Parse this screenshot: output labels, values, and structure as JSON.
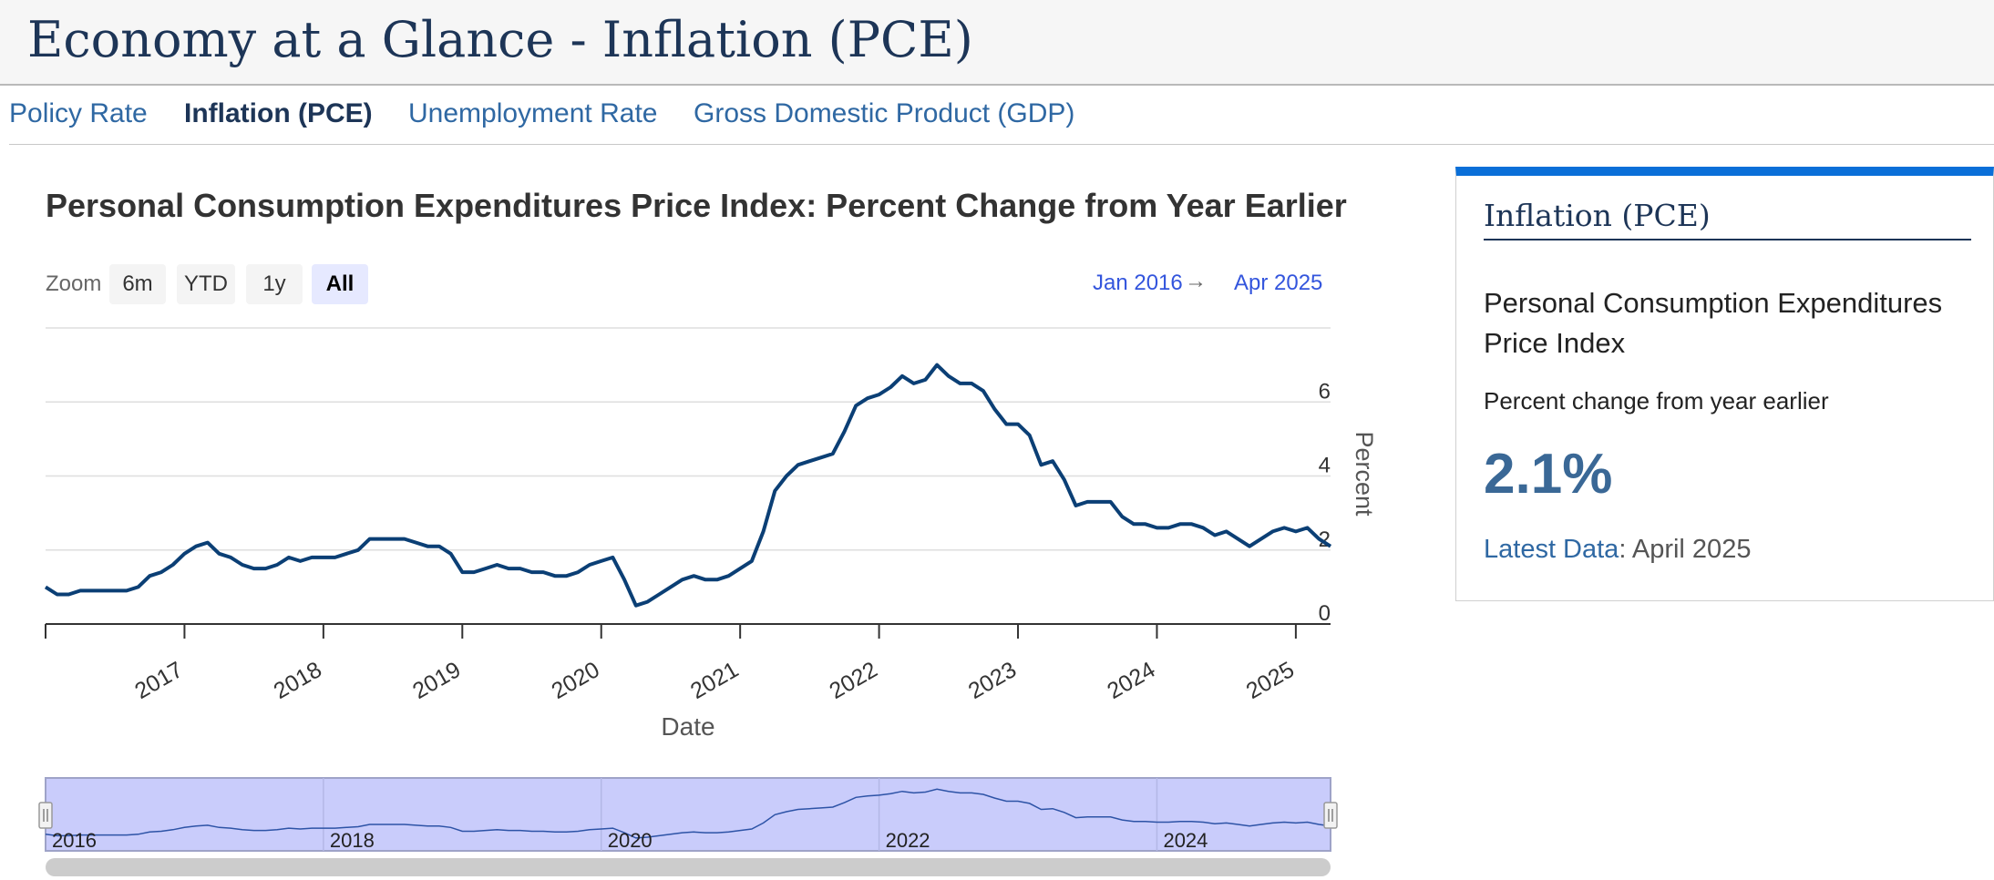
{
  "page": {
    "title": "Economy at a Glance - Inflation (PCE)"
  },
  "nav": {
    "items": [
      {
        "label": "Policy Rate",
        "active": false
      },
      {
        "label": "Inflation (PCE)",
        "active": true
      },
      {
        "label": "Unemployment Rate",
        "active": false
      },
      {
        "label": "Gross Domestic Product (GDP)",
        "active": false
      }
    ]
  },
  "controls": {
    "zoom_label": "Zoom",
    "zoom_buttons": [
      {
        "label": "6m",
        "active": false
      },
      {
        "label": "YTD",
        "active": false
      },
      {
        "label": "1y",
        "active": false
      },
      {
        "label": "All",
        "active": true
      }
    ],
    "range_from": "Jan 2016",
    "range_arrow": "→",
    "range_to": "Apr 2025"
  },
  "sidebar": {
    "title": "Inflation (PCE)",
    "series_name": "Personal Consumption Expenditures Price Index",
    "subtitle": "Percent change from year earlier",
    "latest_value": "2.1%",
    "latest_label": "Latest Data",
    "latest_separator": ":",
    "latest_date": "April 2025"
  },
  "colors": {
    "line": "#0b3f75",
    "navigator_fill": "#c9ccfb",
    "accent_bar": "#0a6fd8",
    "title": "#1d3557",
    "link": "#2f68a3"
  },
  "chart_data": {
    "type": "line",
    "title": "Personal Consumption Expenditures Price Index: Percent Change from Year Earlier",
    "xlabel": "Date",
    "ylabel": "Percent",
    "x_start": "2016-01",
    "x_end": "2025-04",
    "frequency": "monthly",
    "x_tick_labels": [
      "2017",
      "2018",
      "2019",
      "2020",
      "2021",
      "2022",
      "2023",
      "2024",
      "2025"
    ],
    "y_ticks": [
      0,
      2,
      4,
      6
    ],
    "ylim": [
      0,
      8
    ],
    "grid": true,
    "y_axis_side": "right",
    "navigator_labels": [
      "2016",
      "2018",
      "2020",
      "2022",
      "2024"
    ],
    "series": [
      {
        "values": [
          1.0,
          0.8,
          0.8,
          0.9,
          0.9,
          0.9,
          0.9,
          0.9,
          1.0,
          1.3,
          1.4,
          1.6,
          1.9,
          2.1,
          2.2,
          1.9,
          1.8,
          1.6,
          1.5,
          1.5,
          1.6,
          1.8,
          1.7,
          1.8,
          1.8,
          1.8,
          1.9,
          2.0,
          2.3,
          2.3,
          2.3,
          2.3,
          2.2,
          2.1,
          2.1,
          1.9,
          1.4,
          1.4,
          1.5,
          1.6,
          1.5,
          1.5,
          1.4,
          1.4,
          1.3,
          1.3,
          1.4,
          1.6,
          1.7,
          1.8,
          1.2,
          0.5,
          0.6,
          0.8,
          1.0,
          1.2,
          1.3,
          1.2,
          1.2,
          1.3,
          1.5,
          1.7,
          2.5,
          3.6,
          4.0,
          4.3,
          4.4,
          4.5,
          4.6,
          5.2,
          5.9,
          6.1,
          6.2,
          6.4,
          6.7,
          6.5,
          6.6,
          7.0,
          6.7,
          6.5,
          6.5,
          6.3,
          5.8,
          5.4,
          5.4,
          5.1,
          4.3,
          4.4,
          3.9,
          3.2,
          3.3,
          3.3,
          3.3,
          2.9,
          2.7,
          2.7,
          2.6,
          2.6,
          2.7,
          2.7,
          2.6,
          2.4,
          2.5,
          2.3,
          2.1,
          2.3,
          2.5,
          2.6,
          2.5,
          2.6,
          2.3,
          2.1
        ]
      }
    ]
  }
}
